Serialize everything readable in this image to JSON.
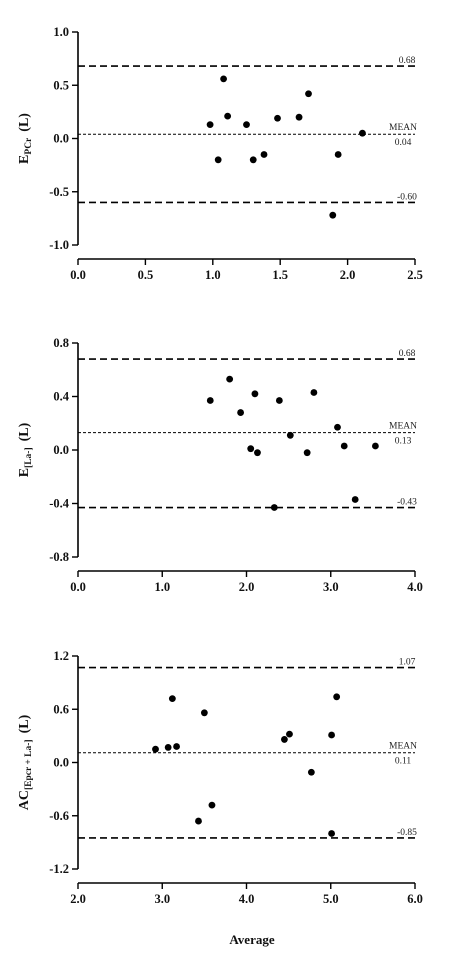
{
  "figure": {
    "xlabel": "Average"
  },
  "chart_data": [
    {
      "type": "scatter",
      "ylabel_main": "E",
      "ylabel_sub": "PCr",
      "ylabel_unit": "(L)",
      "xlim": [
        0,
        2.5
      ],
      "ylim": [
        -1.0,
        1.0
      ],
      "xticks": [
        "0.0",
        "0.5",
        "1.0",
        "1.5",
        "2.0",
        "2.5"
      ],
      "yticks": [
        "1.0",
        "0.5",
        "0.0",
        "-0.5",
        "-1.0"
      ],
      "points": [
        {
          "x": 0.98,
          "y": 0.13
        },
        {
          "x": 1.04,
          "y": -0.2
        },
        {
          "x": 1.08,
          "y": 0.56
        },
        {
          "x": 1.11,
          "y": 0.21
        },
        {
          "x": 1.25,
          "y": 0.13
        },
        {
          "x": 1.3,
          "y": -0.2
        },
        {
          "x": 1.38,
          "y": -0.15
        },
        {
          "x": 1.48,
          "y": 0.19
        },
        {
          "x": 1.64,
          "y": 0.2
        },
        {
          "x": 1.71,
          "y": 0.42
        },
        {
          "x": 1.89,
          "y": -0.72
        },
        {
          "x": 1.93,
          "y": -0.15
        },
        {
          "x": 2.11,
          "y": 0.05
        }
      ],
      "upper": {
        "value": 0.68,
        "label": "0.68"
      },
      "mean": {
        "value": 0.04,
        "label": "0.04",
        "name": "MEAN"
      },
      "lower": {
        "value": -0.6,
        "label": "-0.60"
      }
    },
    {
      "type": "scatter",
      "ylabel_main": "E",
      "ylabel_sub": "[La-]",
      "ylabel_unit": "(L)",
      "xlim": [
        0,
        4.0
      ],
      "ylim": [
        -0.8,
        0.8
      ],
      "xticks": [
        "0.0",
        "1.0",
        "2.0",
        "3.0",
        "4.0"
      ],
      "yticks": [
        "0.8",
        "0.4",
        "0.0",
        "-0.4",
        "-0.8"
      ],
      "points": [
        {
          "x": 1.57,
          "y": 0.37
        },
        {
          "x": 1.8,
          "y": 0.53
        },
        {
          "x": 1.93,
          "y": 0.28
        },
        {
          "x": 2.05,
          "y": 0.01
        },
        {
          "x": 2.1,
          "y": 0.42
        },
        {
          "x": 2.13,
          "y": -0.02
        },
        {
          "x": 2.33,
          "y": -0.43
        },
        {
          "x": 2.39,
          "y": 0.37
        },
        {
          "x": 2.52,
          "y": 0.11
        },
        {
          "x": 2.72,
          "y": -0.02
        },
        {
          "x": 2.8,
          "y": 0.43
        },
        {
          "x": 3.08,
          "y": 0.17
        },
        {
          "x": 3.16,
          "y": 0.03
        },
        {
          "x": 3.29,
          "y": -0.37
        },
        {
          "x": 3.53,
          "y": 0.03
        }
      ],
      "upper": {
        "value": 0.68,
        "label": "0.68"
      },
      "mean": {
        "value": 0.13,
        "label": "0.13",
        "name": "MEAN"
      },
      "lower": {
        "value": -0.43,
        "label": "-0.43"
      }
    },
    {
      "type": "scatter",
      "ylabel_main": "AC",
      "ylabel_sub": "[Epcr + La-]",
      "ylabel_unit": "(L)",
      "xlim": [
        2.0,
        6.0
      ],
      "ylim": [
        -1.2,
        1.2
      ],
      "xticks": [
        "2.0",
        "3.0",
        "4.0",
        "5.0",
        "6.0"
      ],
      "yticks": [
        "1.2",
        "0.6",
        "0.0",
        "-0.6",
        "-1.2"
      ],
      "points": [
        {
          "x": 2.92,
          "y": 0.15
        },
        {
          "x": 3.07,
          "y": 0.17
        },
        {
          "x": 3.12,
          "y": 0.72
        },
        {
          "x": 3.17,
          "y": 0.18
        },
        {
          "x": 3.43,
          "y": -0.66
        },
        {
          "x": 3.5,
          "y": 0.56
        },
        {
          "x": 3.59,
          "y": -0.48
        },
        {
          "x": 4.45,
          "y": 0.26
        },
        {
          "x": 4.51,
          "y": 0.32
        },
        {
          "x": 4.77,
          "y": -0.11
        },
        {
          "x": 5.01,
          "y": 0.31
        },
        {
          "x": 5.01,
          "y": -0.8
        },
        {
          "x": 5.07,
          "y": 0.74
        }
      ],
      "upper": {
        "value": 1.07,
        "label": "1.07"
      },
      "mean": {
        "value": 0.11,
        "label": "0.11",
        "name": "MEAN"
      },
      "lower": {
        "value": -0.85,
        "label": "-0.85"
      }
    }
  ]
}
